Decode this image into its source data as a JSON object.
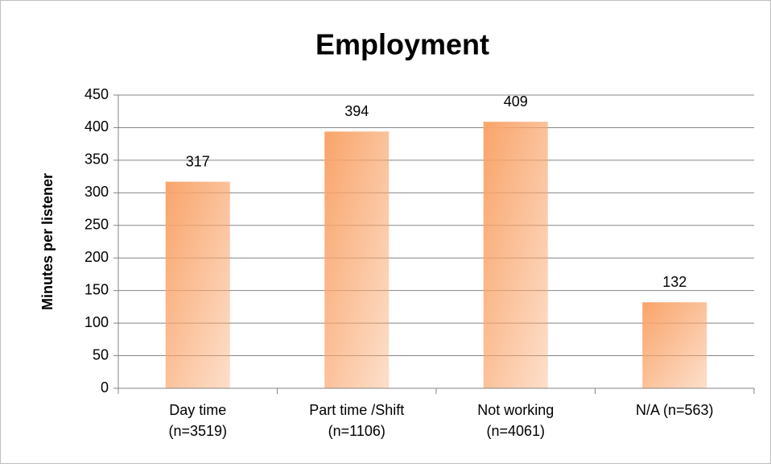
{
  "chart_data": {
    "type": "bar",
    "title": "Employment",
    "ylabel": "Minutes per listener",
    "categories": [
      "Day time\n(n=3519)",
      "Part time /Shift\n(n=1106)",
      "Not working\n(n=4061)",
      "N/A (n=563)"
    ],
    "values": [
      317,
      394,
      409,
      132
    ],
    "color": "#f9a46a",
    "ylim": [
      0,
      450
    ],
    "yticks": [
      0,
      50,
      100,
      150,
      200,
      250,
      300,
      350,
      400,
      450
    ],
    "grid": true
  }
}
